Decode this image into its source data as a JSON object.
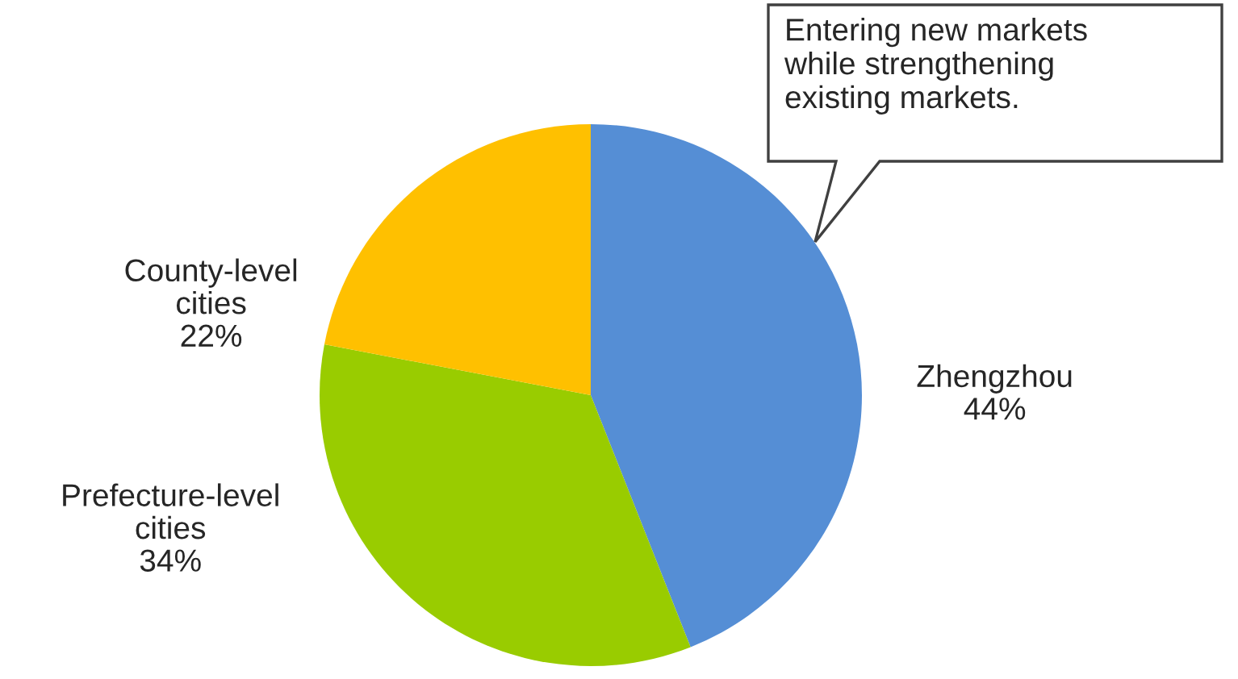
{
  "chart_data": {
    "type": "pie",
    "categories": [
      "Zhengzhou",
      "Prefecture-level cities",
      "County-level cities"
    ],
    "values": [
      44,
      34,
      22
    ],
    "value_labels": [
      "44%",
      "34%",
      "22%"
    ],
    "colors": [
      "#558ed5",
      "#99cc00",
      "#ffc000"
    ],
    "annotations": [
      "Entering new markets while strengthening existing markets."
    ],
    "legend": false
  }
}
